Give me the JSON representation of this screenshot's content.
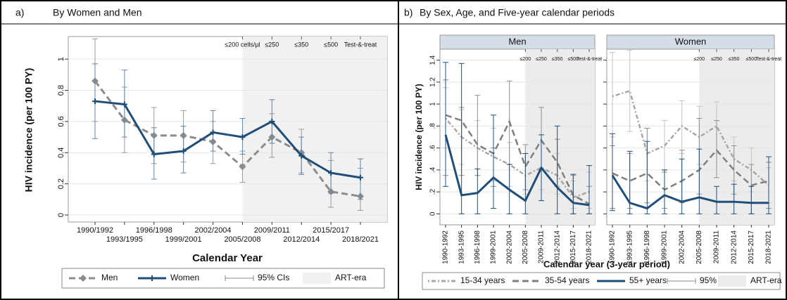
{
  "chart_data": [
    {
      "type": "line",
      "panel_label": "a)",
      "title": "By Women and Men",
      "ylabel": "HIV incidence (per 100 PY)",
      "xlabel": "Calendar Year",
      "categories": [
        "1990/1992",
        "1993/1995",
        "1996/1998",
        "1999/2001",
        "2002/2004",
        "2005/2008",
        "2009/2011",
        "2012/2014",
        "2015/2017",
        "2018/2021"
      ],
      "ylim": [
        -0.045,
        1.145
      ],
      "yticks": [
        0,
        0.2,
        0.4,
        0.6,
        0.8,
        1
      ],
      "grid": true,
      "art_era_from": "2005/2008",
      "shade_label": "ART-era",
      "ci_label": "95% CIs",
      "shade_color": "#f1f1f1",
      "annotations": [
        {
          "text": "≤200 cells/µl",
          "x": "2005/2008"
        },
        {
          "text": "≤250",
          "x": "2009/2011"
        },
        {
          "text": "≤350",
          "x": "2012/2014"
        },
        {
          "text": "≤500",
          "x": "2015/2017"
        },
        {
          "text": "Test-&-treat",
          "x": "2018/2021"
        }
      ],
      "series": [
        {
          "name": "Men",
          "color": "#8c8c8c",
          "dash": "dashed",
          "marker": "diamond",
          "ci_color": "#9a9a9a",
          "values": [
            0.86,
            0.61,
            0.51,
            0.51,
            0.47,
            0.31,
            0.5,
            0.4,
            0.15,
            0.12
          ],
          "ci_low": [
            0.6,
            0.4,
            0.33,
            0.34,
            0.33,
            0.21,
            0.37,
            0.27,
            0.05,
            0.03
          ],
          "ci_high": [
            1.13,
            0.82,
            0.69,
            0.67,
            0.6,
            0.41,
            0.65,
            0.55,
            0.35,
            0.3
          ]
        },
        {
          "name": "Women",
          "color": "#1f4e79",
          "dash": "solid",
          "marker": "plus",
          "ci_color": "#5f86ad",
          "values": [
            0.73,
            0.71,
            0.39,
            0.41,
            0.53,
            0.5,
            0.6,
            0.38,
            0.27,
            0.24
          ],
          "ci_low": [
            0.49,
            0.5,
            0.23,
            0.27,
            0.41,
            0.39,
            0.46,
            0.26,
            0.14,
            0.1
          ],
          "ci_high": [
            0.97,
            0.93,
            0.56,
            0.57,
            0.67,
            0.62,
            0.74,
            0.5,
            0.4,
            0.36
          ]
        }
      ]
    },
    {
      "type": "line",
      "panel_label": "b)",
      "title": "By Sex, Age, and Five-year calendar periods",
      "ylabel": "HIV incidence (per 100 PY)",
      "xlabel": "Calendar year (3-year period)",
      "categories": [
        "1990-1992",
        "1993-1995",
        "1996-1998",
        "1999-2001",
        "2002-2004",
        "2005-2008",
        "2009-2011",
        "2012-2014",
        "2015-2017",
        "2018-2021"
      ],
      "ylim": [
        -0.1,
        1.5
      ],
      "yticks": [
        0,
        {
          "value": 0.2,
          "label": ".2"
        },
        {
          "value": 0.4,
          "label": ".4"
        },
        {
          "value": 0.6,
          "label": ".6"
        },
        {
          "value": 0.8,
          "label": ".8"
        },
        1,
        1.2,
        1.4
      ],
      "grid": true,
      "art_era_from": "2005-2008",
      "shade_label": "ART-era",
      "ci_label": "95% CIs",
      "shade_color": "#ececec",
      "annotations": [
        {
          "text": "≤200",
          "x": "2005-2008"
        },
        {
          "text": "≤250",
          "x": "2009-2011"
        },
        {
          "text": "≤350",
          "x": "2012-2014"
        },
        {
          "text": "≤500",
          "x": "2015-2017"
        },
        {
          "text": "Test-&-treat",
          "x": "2018-2021"
        }
      ],
      "facets": [
        {
          "title": "Men",
          "series": [
            {
              "name": "15-34 years",
              "color": "#a6a6a6",
              "dash": "dotted",
              "ci_color": "#c4c4c4",
              "values": [
                0.87,
                0.7,
                0.6,
                0.52,
                0.45,
                0.35,
                0.42,
                0.35,
                0.15,
                0.2
              ],
              "ci_low": [
                0.6,
                0.45,
                0.35,
                0.3,
                0.25,
                0.18,
                0.22,
                0.18,
                0.05,
                0.05
              ],
              "ci_high": [
                1.15,
                0.95,
                0.85,
                0.78,
                0.65,
                0.55,
                0.65,
                0.55,
                0.3,
                0.38
              ]
            },
            {
              "name": "35-54 years",
              "color": "#7f7f7f",
              "dash": "dashed",
              "ci_color": "#8f8f8f",
              "values": [
                0.9,
                0.85,
                0.63,
                0.55,
                0.84,
                0.43,
                0.67,
                0.47,
                0.17,
                0.09
              ],
              "ci_low": [
                0.35,
                0.35,
                0.35,
                0.25,
                0.45,
                0.22,
                0.4,
                0.25,
                0.0,
                0.0
              ],
              "ci_high": [
                1.22,
                0.97,
                1.08,
                0.6,
                1.21,
                0.63,
                0.97,
                0.68,
                0.35,
                0.25
              ]
            },
            {
              "name": "55+ years",
              "color": "#1f4e79",
              "dash": "solid",
              "ci_color": "#1f4e79",
              "values": [
                0.72,
                0.17,
                0.19,
                0.33,
                0.22,
                0.12,
                0.42,
                0.24,
                0.1,
                0.08
              ],
              "ci_low": [
                0.25,
                0.0,
                0.0,
                0.05,
                0.0,
                0.0,
                0.12,
                0.0,
                0.0,
                0.0
              ],
              "ci_high": [
                1.38,
                1.37,
                0.41,
                0.9,
                0.45,
                0.55,
                0.72,
                0.8,
                0.36,
                0.44
              ]
            }
          ]
        },
        {
          "title": "Women",
          "series": [
            {
              "name": "15-34 years",
              "color": "#a6a6a6",
              "dash": "dotted",
              "ci_color": "#c4c4c4",
              "values": [
                1.07,
                1.12,
                0.55,
                0.62,
                0.8,
                0.7,
                0.8,
                0.5,
                0.4,
                0.26
              ],
              "ci_low": [
                0.7,
                0.75,
                0.3,
                0.4,
                0.55,
                0.45,
                0.55,
                0.3,
                0.2,
                0.1
              ],
              "ci_high": [
                1.47,
                1.49,
                0.78,
                0.85,
                1.03,
                0.98,
                1.02,
                0.7,
                0.6,
                0.42
              ]
            },
            {
              "name": "35-54 years",
              "color": "#7f7f7f",
              "dash": "dashed",
              "ci_color": "#8f8f8f",
              "values": [
                0.37,
                0.3,
                0.37,
                0.22,
                0.3,
                0.4,
                0.58,
                0.4,
                0.26,
                0.3
              ],
              "ci_low": [
                0.05,
                0.05,
                0.1,
                0.05,
                0.1,
                0.18,
                0.33,
                0.18,
                0.0,
                0.05
              ],
              "ci_high": [
                0.62,
                0.55,
                0.78,
                0.38,
                0.58,
                0.87,
                0.85,
                0.62,
                0.45,
                0.47
              ]
            },
            {
              "name": "55+ years",
              "color": "#1f4e79",
              "dash": "solid",
              "ci_color": "#1f4e79",
              "values": [
                0.35,
                0.1,
                0.05,
                0.17,
                0.11,
                0.15,
                0.11,
                0.11,
                0.1,
                0.1
              ],
              "ci_low": [
                0.03,
                0.0,
                0.0,
                0.0,
                0.0,
                0.0,
                0.0,
                0.0,
                0.0,
                0.0
              ],
              "ci_high": [
                0.73,
                0.57,
                0.66,
                0.4,
                0.5,
                0.59,
                0.25,
                0.27,
                0.25,
                0.52
              ]
            }
          ]
        }
      ]
    }
  ]
}
